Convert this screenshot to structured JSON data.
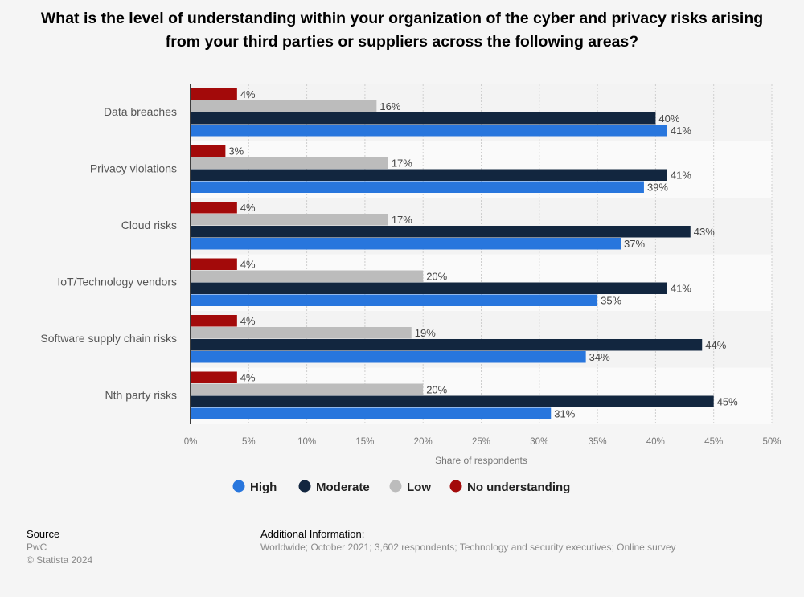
{
  "chart_data": {
    "type": "bar",
    "orientation": "horizontal",
    "title": "What is the level of understanding within your organization of the cyber and privacy risks arising from your third parties or suppliers across the following areas?",
    "categories": [
      "Data breaches",
      "Privacy violations",
      "Cloud risks",
      "IoT/Technology vendors",
      "Software supply chain risks",
      "Nth party risks"
    ],
    "series": [
      {
        "name": "No understanding",
        "color": "#a30a0a",
        "values": [
          4,
          3,
          4,
          4,
          4,
          4
        ]
      },
      {
        "name": "Low",
        "color": "#bcbcbc",
        "values": [
          16,
          17,
          17,
          20,
          19,
          20
        ]
      },
      {
        "name": "Moderate",
        "color": "#12263f",
        "values": [
          40,
          41,
          43,
          41,
          44,
          45
        ]
      },
      {
        "name": "High",
        "color": "#2876dd",
        "values": [
          41,
          39,
          37,
          35,
          34,
          31
        ]
      }
    ],
    "legend_order": [
      "High",
      "Moderate",
      "Low",
      "No understanding"
    ],
    "xlabel": "Share of respondents",
    "xlim": [
      0,
      50
    ],
    "xticks": [
      "0%",
      "5%",
      "10%",
      "15%",
      "20%",
      "25%",
      "30%",
      "35%",
      "40%",
      "45%",
      "50%"
    ],
    "value_suffix": "%",
    "grid": true,
    "legend_placement": "bottom"
  },
  "footer": {
    "source_label": "Source",
    "source": "PwC",
    "copyright": "© Statista 2024",
    "info_label": "Additional Information:",
    "info": "Worldwide; October 2021; 3,602 respondents; Technology and security executives; Online survey"
  }
}
